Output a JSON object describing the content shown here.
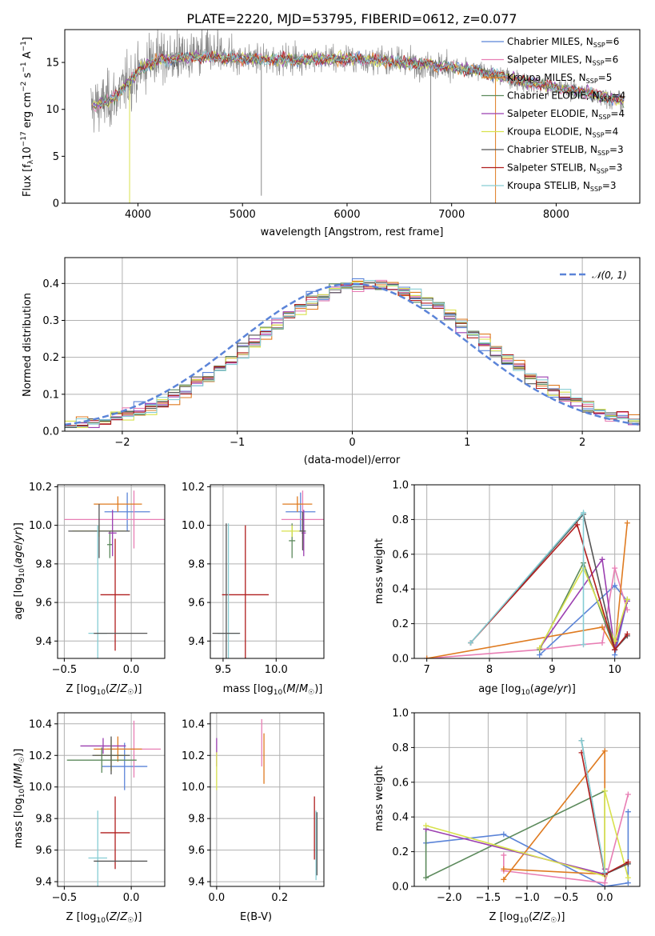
{
  "colors": {
    "chabrier_miles": "#5b84d8",
    "salpeter_miles": "#e87eb4",
    "kroupa_miles": "#df7b21",
    "chabrier_elodie": "#5c8a5c",
    "salpeter_elodie": "#9b3fb0",
    "kroupa_elodie": "#d8e24d",
    "chabrier_stelib": "#555555",
    "salpeter_stelib": "#b01e1e",
    "kroupa_stelib": "#86cdd4",
    "spectrum": "#8a8a8a",
    "normal": "#5b84d8"
  },
  "chart_data": [
    {
      "type": "line",
      "title": "PLATE=2220, MJD=53795, FIBERID=0612, z=0.077",
      "xlabel": "wavelength [Angstrom, rest frame]",
      "ylabel": "Flux [f_λ 10^-17 erg cm^-2 s^-1 A^-1]",
      "xlim": [
        3300,
        8800
      ],
      "ylim": [
        0,
        18.5
      ],
      "xticks": [
        "4000",
        "5000",
        "6000",
        "7000",
        "8000"
      ],
      "yticks": [
        "0",
        "5",
        "10",
        "15"
      ],
      "legend_position": "top-right",
      "series": [
        {
          "name": "Chabrier MILES, N_SSP=6",
          "main": "Chabrier MILES, N",
          "sub": "SSP",
          "tail": "=6",
          "color_key": "chabrier_miles"
        },
        {
          "name": "Salpeter MILES, N_SSP=6",
          "main": "Salpeter MILES, N",
          "sub": "SSP",
          "tail": "=6",
          "color_key": "salpeter_miles"
        },
        {
          "name": "Kroupa MILES, N_SSP=5",
          "main": "Kroupa MILES, N",
          "sub": "SSP",
          "tail": "=5",
          "color_key": "kroupa_miles"
        },
        {
          "name": "Chabrier ELODIE, N_SSP=4",
          "main": "Chabrier ELODIE, N",
          "sub": "SSP",
          "tail": "=4",
          "color_key": "chabrier_elodie"
        },
        {
          "name": "Salpeter ELODIE, N_SSP=4",
          "main": "Salpeter ELODIE, N",
          "sub": "SSP",
          "tail": "=4",
          "color_key": "salpeter_elodie"
        },
        {
          "name": "Kroupa ELODIE, N_SSP=4",
          "main": "Kroupa ELODIE, N",
          "sub": "SSP",
          "tail": "=4",
          "color_key": "kroupa_elodie"
        },
        {
          "name": "Chabrier STELIB, N_SSP=3",
          "main": "Chabrier STELIB, N",
          "sub": "SSP",
          "tail": "=3",
          "color_key": "chabrier_stelib"
        },
        {
          "name": "Salpeter STELIB, N_SSP=3",
          "main": "Salpeter STELIB, N",
          "sub": "SSP",
          "tail": "=3",
          "color_key": "salpeter_stelib"
        },
        {
          "name": "Kroupa STELIB, N_SSP=3",
          "main": "Kroupa STELIB, N",
          "sub": "SSP",
          "tail": "=3",
          "color_key": "kroupa_stelib"
        }
      ],
      "model_trend": [
        [
          3550,
          10.3
        ],
        [
          3700,
          10.8
        ],
        [
          3800,
          11.5
        ],
        [
          3900,
          12.8
        ],
        [
          4000,
          14.0
        ],
        [
          4100,
          14.8
        ],
        [
          4200,
          15.2
        ],
        [
          4500,
          15.6
        ],
        [
          5000,
          15.4
        ],
        [
          5500,
          15.3
        ],
        [
          6000,
          15.4
        ],
        [
          6500,
          15.1
        ],
        [
          7000,
          14.5
        ],
        [
          7300,
          14.0
        ],
        [
          7600,
          13.2
        ],
        [
          8000,
          12.3
        ],
        [
          8300,
          11.8
        ],
        [
          8500,
          11.2
        ],
        [
          8650,
          10.9
        ]
      ],
      "spikes": [
        [
          3920,
          0
        ],
        [
          5180,
          0.8
        ],
        [
          6800,
          0
        ],
        [
          7420,
          0
        ]
      ]
    },
    {
      "type": "line",
      "xlabel": "(data-model)/error",
      "ylabel": "Normed distribution",
      "xlim": [
        -2.5,
        2.5
      ],
      "ylim": [
        0,
        0.47
      ],
      "xticks": [
        "−2",
        "−1",
        "0",
        "1",
        "2"
      ],
      "yticks": [
        "0.0",
        "0.1",
        "0.2",
        "0.3",
        "0.4"
      ],
      "legend_position": "top-right",
      "legend": "𝒩(0, 1)",
      "bin_width": 0.1
    },
    {
      "type": "scatter",
      "xlabel": "Z [log10(Z/Z☉)]",
      "ylabel": "age  [log10(age/yr)]",
      "xlim": [
        -0.55,
        0.25
      ],
      "ylim": [
        9.31,
        10.21
      ],
      "xticks": [
        "−0.5",
        "0.0"
      ],
      "xtick_vals": [
        -0.5,
        0.0
      ],
      "yticks": [
        "9.4",
        "9.6",
        "9.8",
        "10.0",
        "10.2"
      ],
      "ytick_vals": [
        9.4,
        9.6,
        9.8,
        10.0,
        10.2
      ],
      "points": [
        {
          "x": -0.03,
          "y": 10.07,
          "xerr": 0.17,
          "yerr": 0.1,
          "color_key": "chabrier_miles"
        },
        {
          "x": 0.02,
          "y": 10.03,
          "xerr": 0.52,
          "yerr": 0.15,
          "color_key": "salpeter_miles"
        },
        {
          "x": -0.1,
          "y": 10.11,
          "xerr": 0.18,
          "yerr": 0.04,
          "color_key": "kroupa_miles"
        },
        {
          "x": -0.16,
          "y": 9.9,
          "xerr": 0.02,
          "yerr": 0.07,
          "color_key": "chabrier_elodie"
        },
        {
          "x": -0.14,
          "y": 9.96,
          "xerr": 0.03,
          "yerr": 0.12,
          "color_key": "salpeter_elodie"
        },
        {
          "x": -0.24,
          "y": 9.97,
          "xerr": 0.2,
          "yerr": 0.03,
          "color_key": "kroupa_elodie"
        },
        {
          "x": -0.24,
          "y": 9.97,
          "xerr": 0.23,
          "yerr": 0.14,
          "color_key": "chabrier_stelib"
        },
        {
          "x": -0.12,
          "y": 9.64,
          "xerr": 0.11,
          "yerr": 0.29,
          "color_key": "salpeter_stelib"
        },
        {
          "x": -0.25,
          "y": 9.44,
          "xerr": 0.07,
          "yerr": 0.56,
          "color_key": "kroupa_stelib"
        },
        {
          "x": -0.08,
          "y": 9.44,
          "xerr": 0.2,
          "yerr": 0.0,
          "color_key": "chabrier_stelib"
        }
      ]
    },
    {
      "type": "scatter",
      "xlabel": "mass [log10(M/M☉)]",
      "ylabel": "",
      "xlim": [
        9.38,
        10.45
      ],
      "ylim": [
        9.31,
        10.21
      ],
      "xticks": [
        "9.5",
        "10.0"
      ],
      "xtick_vals": [
        9.5,
        10.0
      ],
      "yticks": [
        "9.4",
        "9.6",
        "9.8",
        "10.0",
        "10.2"
      ],
      "ytick_vals": [
        9.4,
        9.6,
        9.8,
        10.0,
        10.2
      ],
      "points": [
        {
          "x": 10.23,
          "y": 10.07,
          "xerr": 0.14,
          "yerr": 0.1,
          "color_key": "chabrier_miles"
        },
        {
          "x": 10.25,
          "y": 10.03,
          "xerr": 0.2,
          "yerr": 0.15,
          "color_key": "salpeter_miles"
        },
        {
          "x": 10.2,
          "y": 10.11,
          "xerr": 0.14,
          "yerr": 0.04,
          "color_key": "kroupa_miles"
        },
        {
          "x": 10.15,
          "y": 9.92,
          "xerr": 0.03,
          "yerr": 0.09,
          "color_key": "chabrier_elodie"
        },
        {
          "x": 10.26,
          "y": 9.96,
          "xerr": 0.02,
          "yerr": 0.12,
          "color_key": "salpeter_elodie"
        },
        {
          "x": 10.15,
          "y": 9.97,
          "xerr": 0.1,
          "yerr": 0.03,
          "color_key": "kroupa_elodie"
        },
        {
          "x": 10.25,
          "y": 9.97,
          "xerr": 0.03,
          "yerr": 0.1,
          "color_key": "chabrier_stelib"
        },
        {
          "x": 9.71,
          "y": 9.64,
          "xerr": 0.22,
          "yerr": 0.36,
          "color_key": "salpeter_stelib"
        },
        {
          "x": 9.55,
          "y": 9.44,
          "xerr": 0.1,
          "yerr": 0.57,
          "color_key": "kroupa_stelib"
        },
        {
          "x": 9.53,
          "y": 9.44,
          "xerr": 0.13,
          "yerr": 0.57,
          "color_key": "chabrier_stelib"
        }
      ]
    },
    {
      "type": "line",
      "xlabel": "age  [log10(age/yr)]",
      "ylabel": "mass weight",
      "xlim": [
        6.8,
        10.4
      ],
      "ylim": [
        0,
        1.0
      ],
      "xticks": [
        "7",
        "8",
        "9",
        "10"
      ],
      "xtick_vals": [
        7,
        8,
        9,
        10
      ],
      "yticks": [
        "0.0",
        "0.2",
        "0.4",
        "0.6",
        "0.8",
        "1.0"
      ],
      "ytick_vals": [
        0,
        0.2,
        0.4,
        0.6,
        0.8,
        1.0
      ],
      "series": [
        {
          "color_key": "chabrier_miles",
          "x": [
            8.8,
            10.0,
            10.2,
            10.0
          ],
          "y": [
            0.02,
            0.42,
            0.33,
            0.02
          ]
        },
        {
          "color_key": "salpeter_miles",
          "x": [
            7.0,
            8.8,
            9.5,
            9.8,
            10.0,
            10.2
          ],
          "y": [
            0.0,
            0.05,
            0.08,
            0.09,
            0.52,
            0.28
          ]
        },
        {
          "color_key": "kroupa_miles",
          "x": [
            7.0,
            9.8,
            10.0,
            10.2
          ],
          "y": [
            0.0,
            0.18,
            0.05,
            0.78
          ]
        },
        {
          "color_key": "chabrier_elodie",
          "x": [
            8.8,
            9.5,
            10.0,
            10.2
          ],
          "y": [
            0.05,
            0.55,
            0.05,
            0.34
          ]
        },
        {
          "color_key": "salpeter_elodie",
          "x": [
            8.8,
            9.8,
            10.0,
            10.2
          ],
          "y": [
            0.06,
            0.57,
            0.05,
            0.33
          ]
        },
        {
          "color_key": "kroupa_elodie",
          "x": [
            8.8,
            9.5,
            10.0,
            10.2
          ],
          "y": [
            0.06,
            0.52,
            0.1,
            0.34
          ]
        },
        {
          "color_key": "chabrier_stelib",
          "x": [
            7.7,
            9.5,
            10.0,
            10.2
          ],
          "y": [
            0.09,
            0.83,
            0.05,
            0.13
          ]
        },
        {
          "color_key": "salpeter_stelib",
          "x": [
            7.7,
            9.4,
            10.0,
            10.2
          ],
          "y": [
            0.09,
            0.77,
            0.05,
            0.14
          ]
        },
        {
          "color_key": "kroupa_stelib",
          "x": [
            7.7,
            9.5,
            9.5
          ],
          "y": [
            0.09,
            0.84,
            0.08
          ]
        }
      ]
    },
    {
      "type": "scatter",
      "xlabel": "Z [log10(Z/Z☉)]",
      "ylabel": "mass [log10(M/M☉)]",
      "xlim": [
        -0.55,
        0.25
      ],
      "ylim": [
        9.37,
        10.47
      ],
      "xticks": [
        "−0.5",
        "0.0"
      ],
      "xtick_vals": [
        -0.5,
        0.0
      ],
      "yticks": [
        "9.4",
        "9.6",
        "9.8",
        "10.0",
        "10.2",
        "10.4"
      ],
      "ytick_vals": [
        9.4,
        9.6,
        9.8,
        10.0,
        10.2,
        10.4
      ],
      "points": [
        {
          "x": -0.05,
          "y": 10.13,
          "xerr": 0.17,
          "yerr": 0.15,
          "color_key": "chabrier_miles"
        },
        {
          "x": 0.02,
          "y": 10.24,
          "xerr": 0.2,
          "yerr": 0.18,
          "color_key": "salpeter_miles"
        },
        {
          "x": -0.1,
          "y": 10.24,
          "xerr": 0.18,
          "yerr": 0.08,
          "color_key": "kroupa_miles"
        },
        {
          "x": -0.22,
          "y": 10.17,
          "xerr": 0.26,
          "yerr": 0.08,
          "color_key": "chabrier_elodie"
        },
        {
          "x": -0.21,
          "y": 10.26,
          "xerr": 0.17,
          "yerr": 0.05,
          "color_key": "salpeter_elodie"
        },
        {
          "x": -0.15,
          "y": 10.2,
          "xerr": 0.12,
          "yerr": 0.1,
          "color_key": "kroupa_elodie"
        },
        {
          "x": -0.15,
          "y": 10.2,
          "xerr": 0.14,
          "yerr": 0.12,
          "color_key": "chabrier_stelib"
        },
        {
          "x": -0.12,
          "y": 9.71,
          "xerr": 0.11,
          "yerr": 0.23,
          "color_key": "salpeter_stelib"
        },
        {
          "x": -0.25,
          "y": 9.55,
          "xerr": 0.07,
          "yerr": 0.3,
          "color_key": "kroupa_stelib"
        },
        {
          "x": -0.08,
          "y": 9.53,
          "xerr": 0.2,
          "yerr": 0.0,
          "color_key": "chabrier_stelib"
        }
      ]
    },
    {
      "type": "scatter",
      "xlabel": "E(B-V)",
      "ylabel": "",
      "xlim": [
        -0.02,
        0.34
      ],
      "ylim": [
        9.37,
        10.47
      ],
      "xticks": [
        "0.0",
        "0.2"
      ],
      "xtick_vals": [
        0.0,
        0.2
      ],
      "yticks": [
        "9.4",
        "9.6",
        "9.8",
        "10.0",
        "10.2",
        "10.4"
      ],
      "ytick_vals": [
        9.4,
        9.6,
        9.8,
        10.0,
        10.2,
        10.4
      ],
      "points": [
        {
          "x": 0.0,
          "y": 10.22,
          "xerr": 0.0,
          "yerr": 0.09,
          "color_key": "salpeter_elodie"
        },
        {
          "x": 0.0,
          "y": 10.1,
          "xerr": 0.0,
          "yerr": 0.12,
          "color_key": "kroupa_elodie"
        },
        {
          "x": 0.143,
          "y": 10.28,
          "xerr": 0.0,
          "yerr": 0.15,
          "color_key": "salpeter_miles"
        },
        {
          "x": 0.15,
          "y": 10.18,
          "xerr": 0.0,
          "yerr": 0.16,
          "color_key": "kroupa_miles"
        },
        {
          "x": 0.31,
          "y": 9.74,
          "xerr": 0.0,
          "yerr": 0.2,
          "color_key": "salpeter_stelib"
        },
        {
          "x": 0.315,
          "y": 9.63,
          "xerr": 0.0,
          "yerr": 0.22,
          "color_key": "kroupa_stelib"
        },
        {
          "x": 0.318,
          "y": 9.64,
          "xerr": 0.0,
          "yerr": 0.2,
          "color_key": "chabrier_stelib"
        }
      ]
    },
    {
      "type": "line",
      "xlabel": "Z [log10(Z/Z☉)]",
      "ylabel": "mass weight",
      "xlim": [
        -2.45,
        0.45
      ],
      "ylim": [
        0,
        1.0
      ],
      "xticks": [
        "−2.0",
        "−1.5",
        "−1.0",
        "−0.5",
        "0.0"
      ],
      "xtick_vals": [
        -2.0,
        -1.5,
        -1.0,
        -0.5,
        0.0
      ],
      "yticks": [
        "0.0",
        "0.2",
        "0.4",
        "0.6",
        "0.8",
        "1.0"
      ],
      "ytick_vals": [
        0,
        0.2,
        0.4,
        0.6,
        0.8,
        1.0
      ],
      "series": [
        {
          "color_key": "chabrier_miles",
          "x": [
            -2.3,
            -1.3,
            0.0,
            0.3,
            0.3
          ],
          "y": [
            0.25,
            0.3,
            0.0,
            0.02,
            0.43
          ]
        },
        {
          "color_key": "salpeter_miles",
          "x": [
            -1.3,
            -1.3,
            0.0,
            0.3
          ],
          "y": [
            0.18,
            0.09,
            0.02,
            0.53
          ]
        },
        {
          "color_key": "kroupa_miles",
          "x": [
            -1.3,
            0.0,
            0.0,
            -1.3
          ],
          "y": [
            0.04,
            0.78,
            0.07,
            0.1
          ]
        },
        {
          "color_key": "chabrier_elodie",
          "x": [
            -2.3,
            -2.3,
            0.0,
            0.0
          ],
          "y": [
            0.33,
            0.05,
            0.55,
            0.07
          ]
        },
        {
          "color_key": "salpeter_elodie",
          "x": [
            -2.3,
            0.0,
            0.0
          ],
          "y": [
            0.33,
            0.07,
            0.1
          ]
        },
        {
          "color_key": "kroupa_elodie",
          "x": [
            -2.3,
            0.0,
            0.0,
            0.3
          ],
          "y": [
            0.35,
            0.06,
            0.55,
            0.05
          ]
        },
        {
          "color_key": "chabrier_stelib",
          "x": [
            -0.3,
            0.0,
            0.3
          ],
          "y": [
            0.84,
            0.07,
            0.13
          ]
        },
        {
          "color_key": "salpeter_stelib",
          "x": [
            -0.3,
            0.0,
            0.3
          ],
          "y": [
            0.77,
            0.07,
            0.14
          ]
        },
        {
          "color_key": "kroupa_stelib",
          "x": [
            -0.3,
            0.0
          ],
          "y": [
            0.84,
            0.08
          ]
        }
      ]
    }
  ]
}
